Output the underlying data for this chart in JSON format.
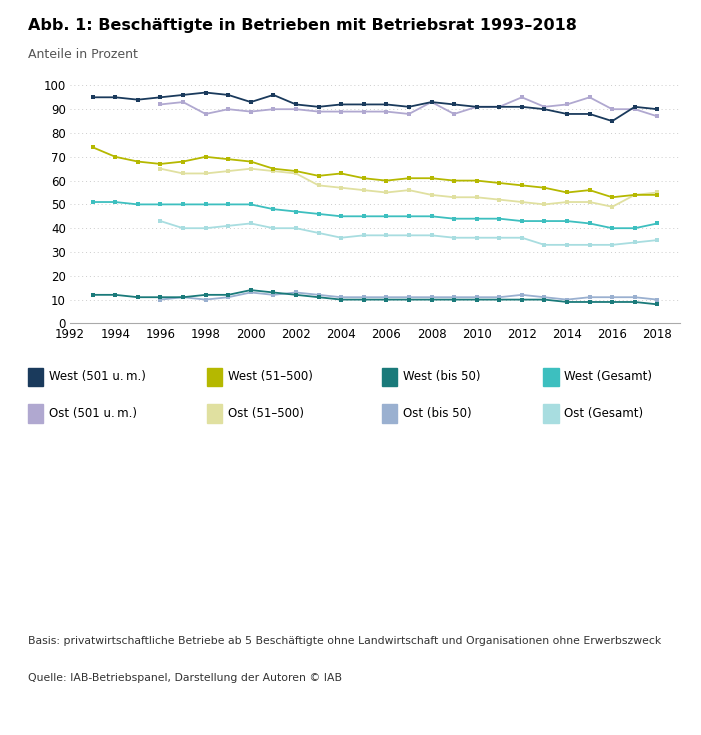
{
  "title": "Abb. 1: Beschäftigte in Betrieben mit Betriebsrat 1993–2018",
  "subtitle": "Anteile in Prozent",
  "footnote1": "Basis: privatwirtschaftliche Betriebe ab 5 Beschäftigte ohne Landwirtschaft und Organisationen ohne Erwerbszweck",
  "footnote2": "Quelle: IAB-Betriebspanel, Darstellung der Autoren © IAB",
  "west_501_years": [
    1993,
    1994,
    1995,
    1996,
    1997,
    1998,
    1999,
    2000,
    2001,
    2002,
    2003,
    2004,
    2005,
    2006,
    2007,
    2008,
    2009,
    2010,
    2011,
    2012,
    2013,
    2014,
    2015,
    2016,
    2017,
    2018
  ],
  "west_501_values": [
    95,
    95,
    94,
    95,
    96,
    97,
    96,
    93,
    96,
    92,
    91,
    92,
    92,
    92,
    91,
    93,
    92,
    91,
    91,
    91,
    90,
    88,
    88,
    85,
    91,
    90
  ],
  "west_51_500_years": [
    1993,
    1994,
    1995,
    1996,
    1997,
    1998,
    1999,
    2000,
    2001,
    2002,
    2003,
    2004,
    2005,
    2006,
    2007,
    2008,
    2009,
    2010,
    2011,
    2012,
    2013,
    2014,
    2015,
    2016,
    2017,
    2018
  ],
  "west_51_500_values": [
    74,
    70,
    68,
    67,
    68,
    70,
    69,
    68,
    65,
    64,
    62,
    63,
    61,
    60,
    61,
    61,
    60,
    60,
    59,
    58,
    57,
    55,
    56,
    53,
    54,
    54
  ],
  "west_bis50_years": [
    1993,
    1994,
    1995,
    1996,
    1997,
    1998,
    1999,
    2000,
    2001,
    2002,
    2003,
    2004,
    2005,
    2006,
    2007,
    2008,
    2009,
    2010,
    2011,
    2012,
    2013,
    2014,
    2015,
    2016,
    2017,
    2018
  ],
  "west_bis50_values": [
    12,
    12,
    11,
    11,
    11,
    12,
    12,
    14,
    13,
    12,
    11,
    10,
    10,
    10,
    10,
    10,
    10,
    10,
    10,
    10,
    10,
    9,
    9,
    9,
    9,
    8
  ],
  "west_gesamt_years": [
    1993,
    1994,
    1995,
    1996,
    1997,
    1998,
    1999,
    2000,
    2001,
    2002,
    2003,
    2004,
    2005,
    2006,
    2007,
    2008,
    2009,
    2010,
    2011,
    2012,
    2013,
    2014,
    2015,
    2016,
    2017,
    2018
  ],
  "west_gesamt_values": [
    51,
    51,
    50,
    50,
    50,
    50,
    50,
    50,
    48,
    47,
    46,
    45,
    45,
    45,
    45,
    45,
    44,
    44,
    44,
    43,
    43,
    43,
    42,
    40,
    40,
    42
  ],
  "ost_501_years": [
    1996,
    1997,
    1998,
    1999,
    2000,
    2001,
    2002,
    2003,
    2004,
    2005,
    2006,
    2007,
    2008,
    2009,
    2010,
    2011,
    2012,
    2013,
    2014,
    2015,
    2016,
    2017,
    2018
  ],
  "ost_501_values": [
    92,
    93,
    88,
    90,
    89,
    90,
    90,
    89,
    89,
    89,
    89,
    88,
    93,
    88,
    91,
    91,
    95,
    91,
    92,
    95,
    90,
    90,
    87
  ],
  "ost_51_500_years": [
    1996,
    1997,
    1998,
    1999,
    2000,
    2001,
    2002,
    2003,
    2004,
    2005,
    2006,
    2007,
    2008,
    2009,
    2010,
    2011,
    2012,
    2013,
    2014,
    2015,
    2016,
    2017,
    2018
  ],
  "ost_51_500_values": [
    65,
    63,
    63,
    64,
    65,
    64,
    63,
    58,
    57,
    56,
    55,
    56,
    54,
    53,
    53,
    52,
    51,
    50,
    51,
    51,
    49,
    54,
    55
  ],
  "ost_bis50_years": [
    1996,
    1997,
    1998,
    1999,
    2000,
    2001,
    2002,
    2003,
    2004,
    2005,
    2006,
    2007,
    2008,
    2009,
    2010,
    2011,
    2012,
    2013,
    2014,
    2015,
    2016,
    2017,
    2018
  ],
  "ost_bis50_values": [
    10,
    11,
    10,
    11,
    13,
    12,
    13,
    12,
    11,
    11,
    11,
    11,
    11,
    11,
    11,
    11,
    12,
    11,
    10,
    11,
    11,
    11,
    10
  ],
  "ost_gesamt_years": [
    1996,
    1997,
    1998,
    1999,
    2000,
    2001,
    2002,
    2003,
    2004,
    2005,
    2006,
    2007,
    2008,
    2009,
    2010,
    2011,
    2012,
    2013,
    2014,
    2015,
    2016,
    2017,
    2018
  ],
  "ost_gesamt_values": [
    43,
    40,
    40,
    41,
    42,
    40,
    40,
    38,
    36,
    37,
    37,
    37,
    37,
    36,
    36,
    36,
    36,
    33,
    33,
    33,
    33,
    34,
    35
  ],
  "color_west_501": "#1a3a5c",
  "color_west_51_500": "#b5b800",
  "color_west_bis50": "#1a7a7a",
  "color_west_gesamt": "#3dbfbf",
  "color_ost_501": "#b0a8d0",
  "color_ost_51_500": "#e0e0a0",
  "color_ost_bis50": "#9ab0d0",
  "color_ost_gesamt": "#a8dde0",
  "ylim": [
    0,
    105
  ],
  "yticks": [
    0,
    10,
    20,
    30,
    40,
    50,
    60,
    70,
    80,
    90,
    100
  ],
  "xticks": [
    1992,
    1994,
    1996,
    1998,
    2000,
    2002,
    2004,
    2006,
    2008,
    2010,
    2012,
    2014,
    2016,
    2018
  ]
}
